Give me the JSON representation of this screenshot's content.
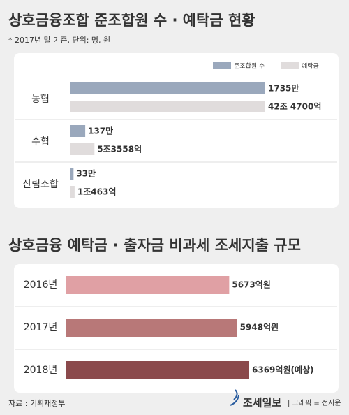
{
  "chart_data": [
    {
      "type": "bar",
      "orientation": "horizontal",
      "title": "상호금융조합 준조합원 수 · 예탁금 현황",
      "subtitle": "* 2017년 말 기준, 단위: 명, 원",
      "categories": [
        "농협",
        "수협",
        "산림조합"
      ],
      "series": [
        {
          "name": "준조합원 수",
          "color": "#9aa8bc",
          "values": [
            1735,
            137,
            33
          ],
          "value_labels": [
            "1735만",
            "137만",
            "33만"
          ]
        },
        {
          "name": "예탁금",
          "color": "#e0dcdc",
          "values": [
            424700,
            53558,
            10463
          ],
          "value_labels": [
            "42조 4700억",
            "5조3558억",
            "1조463억"
          ]
        }
      ],
      "legend": "top-right"
    },
    {
      "type": "bar",
      "orientation": "horizontal",
      "title": "상호금융 예탁금 · 출자금 비과세 조세지출 규모",
      "categories": [
        "2016년",
        "2017년",
        "2018년"
      ],
      "values": [
        5673,
        5948,
        6369
      ],
      "value_labels": [
        "5673억원",
        "5948억원",
        "6369억원(예상)"
      ],
      "colors": [
        "#e0a0a4",
        "#b87878",
        "#8b4a4c"
      ]
    }
  ],
  "source": "자료 : 기획재정부",
  "brand": "조세일보",
  "credit": "| 그래픽 = 전지윤"
}
